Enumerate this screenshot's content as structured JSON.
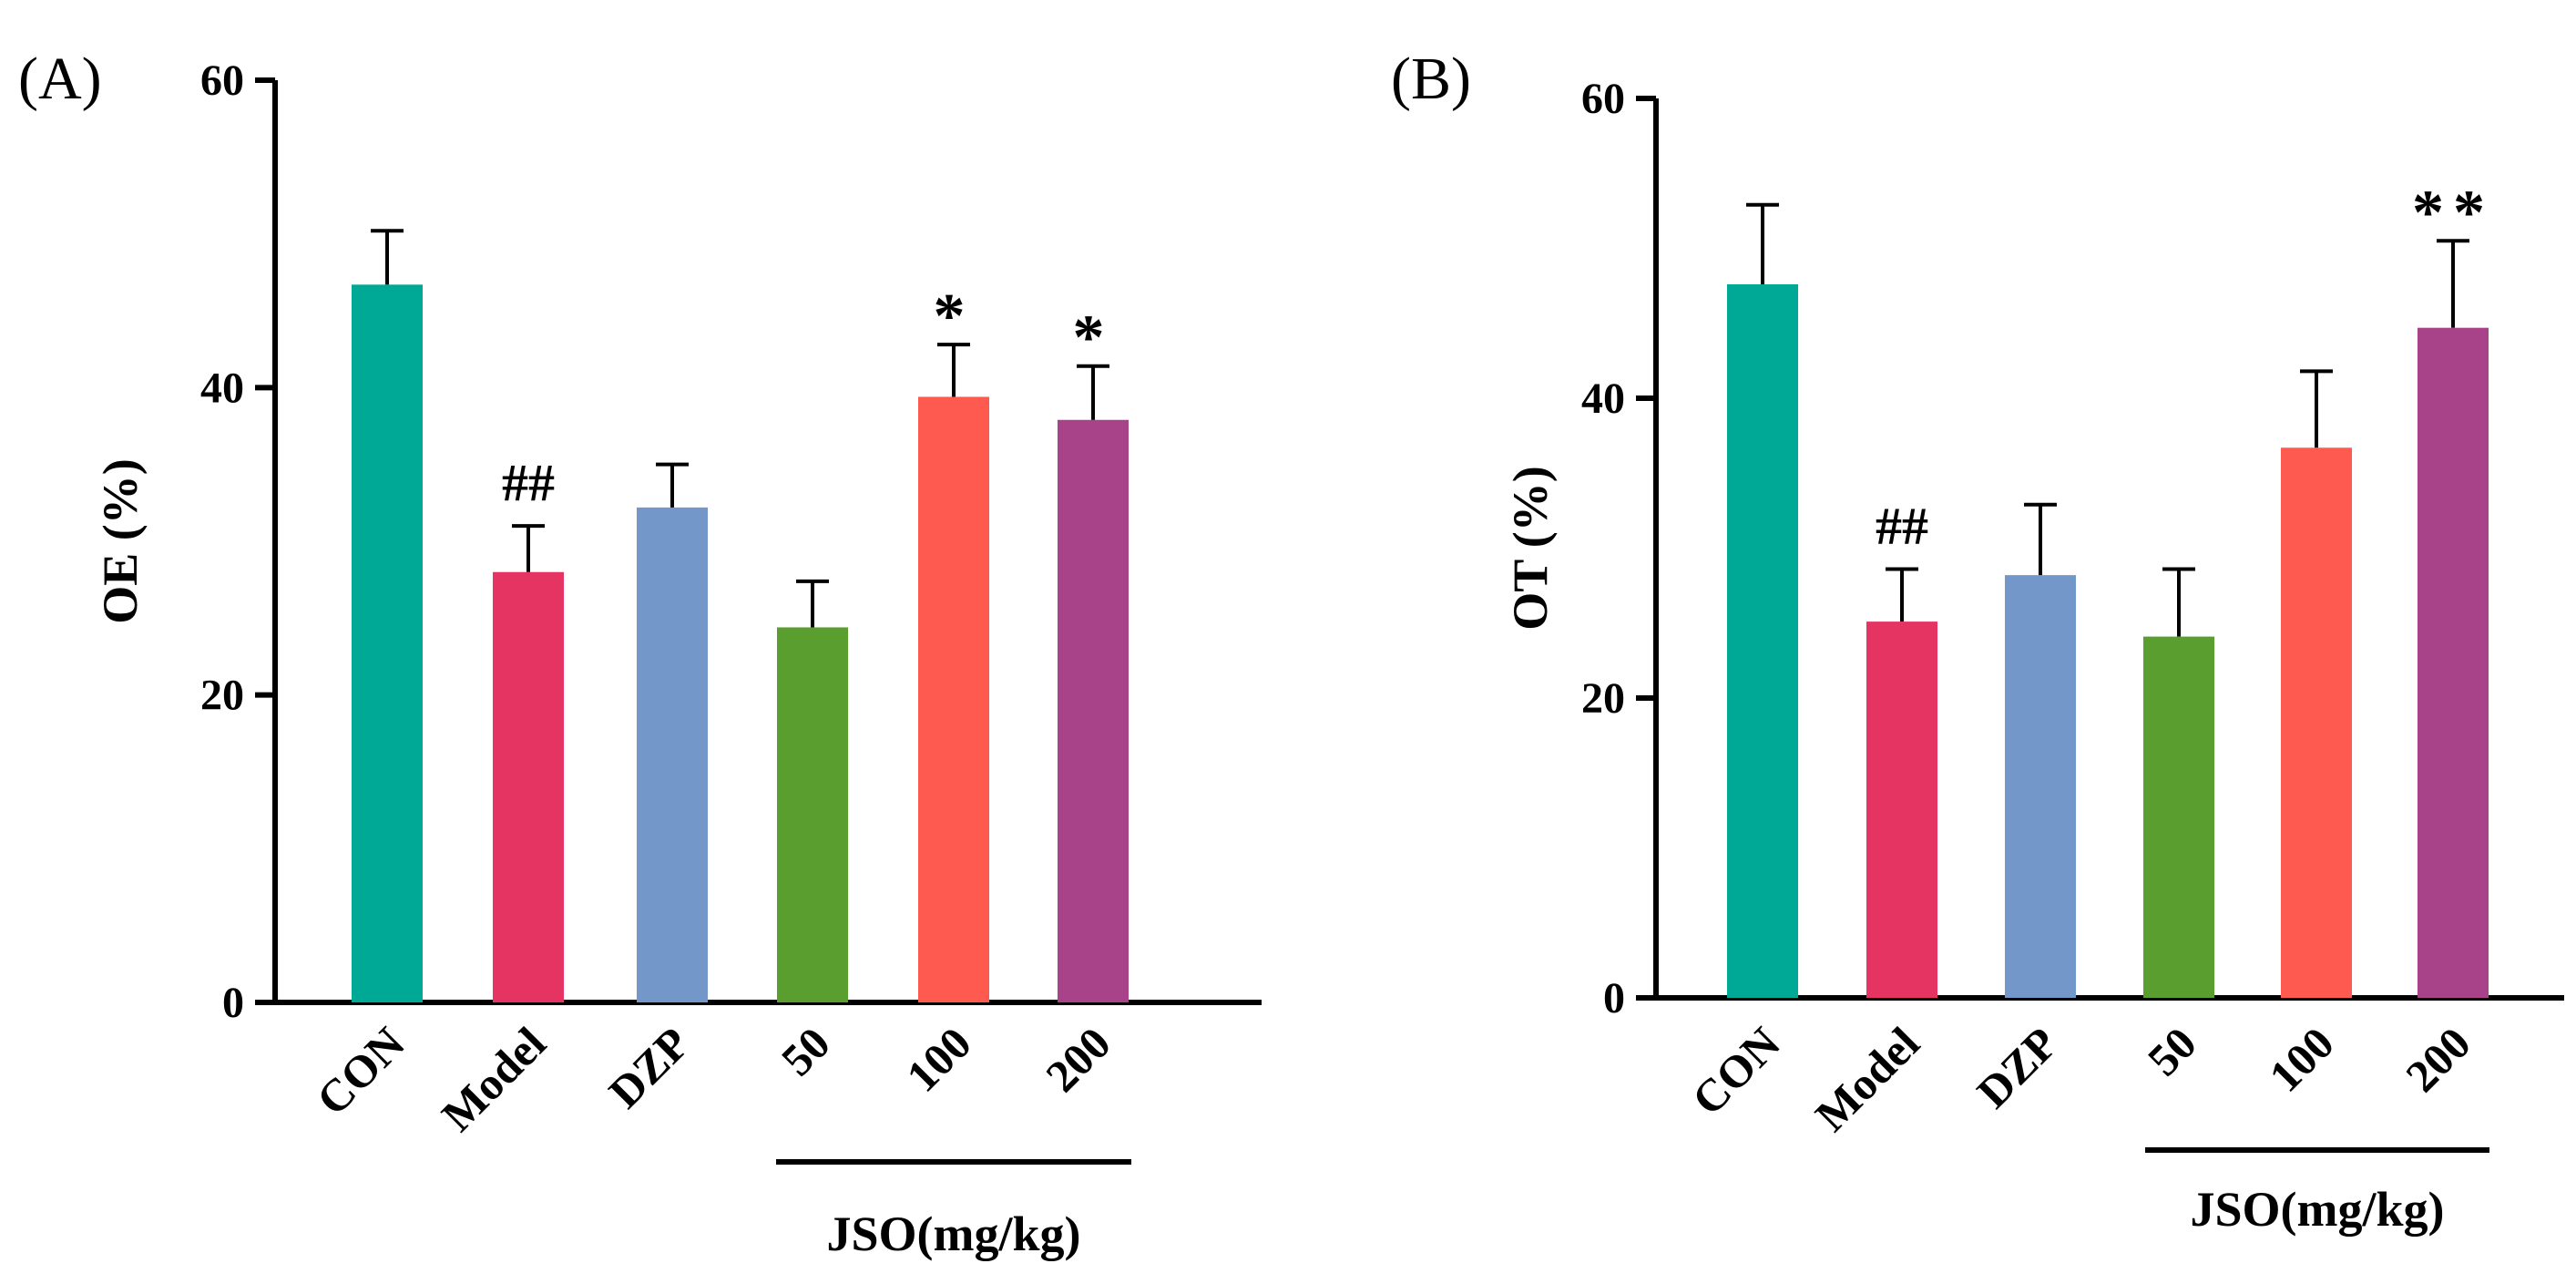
{
  "chart_data": [
    {
      "panel_label": "(A)",
      "type": "bar",
      "ylabel": "OE (%)",
      "ylim": [
        0,
        60
      ],
      "yticks": [
        0,
        20,
        40,
        60
      ],
      "categories": [
        "CON",
        "Model",
        "DZP",
        "50",
        "100",
        "200"
      ],
      "values": [
        46.7,
        28.0,
        32.2,
        24.4,
        39.4,
        37.9
      ],
      "errors": [
        3.5,
        3.0,
        2.8,
        3.0,
        3.4,
        3.5
      ],
      "colors": [
        "#00A896",
        "#E63462",
        "#7497C9",
        "#5A9E2F",
        "#FF5A4F",
        "#A8438A"
      ],
      "annotations": [
        "",
        "##",
        "",
        "",
        "*",
        "*"
      ],
      "group_label": "JSO(mg/kg)",
      "group_range": [
        3,
        5
      ]
    },
    {
      "panel_label": "(B)",
      "type": "bar",
      "ylabel": "OT (%)",
      "ylim": [
        0,
        60
      ],
      "yticks": [
        0,
        20,
        40,
        60
      ],
      "categories": [
        "CON",
        "Model",
        "DZP",
        "50",
        "100",
        "200"
      ],
      "values": [
        47.6,
        25.1,
        28.2,
        24.1,
        36.7,
        44.7
      ],
      "errors": [
        5.3,
        3.5,
        4.7,
        4.5,
        5.1,
        5.8
      ],
      "colors": [
        "#00A896",
        "#E63462",
        "#7497C9",
        "#5A9E2F",
        "#FF5A4F",
        "#A8438A"
      ],
      "annotations": [
        "",
        "##",
        "",
        "",
        "",
        "**"
      ],
      "group_label": "JSO(mg/kg)",
      "group_range": [
        3,
        5
      ]
    }
  ]
}
